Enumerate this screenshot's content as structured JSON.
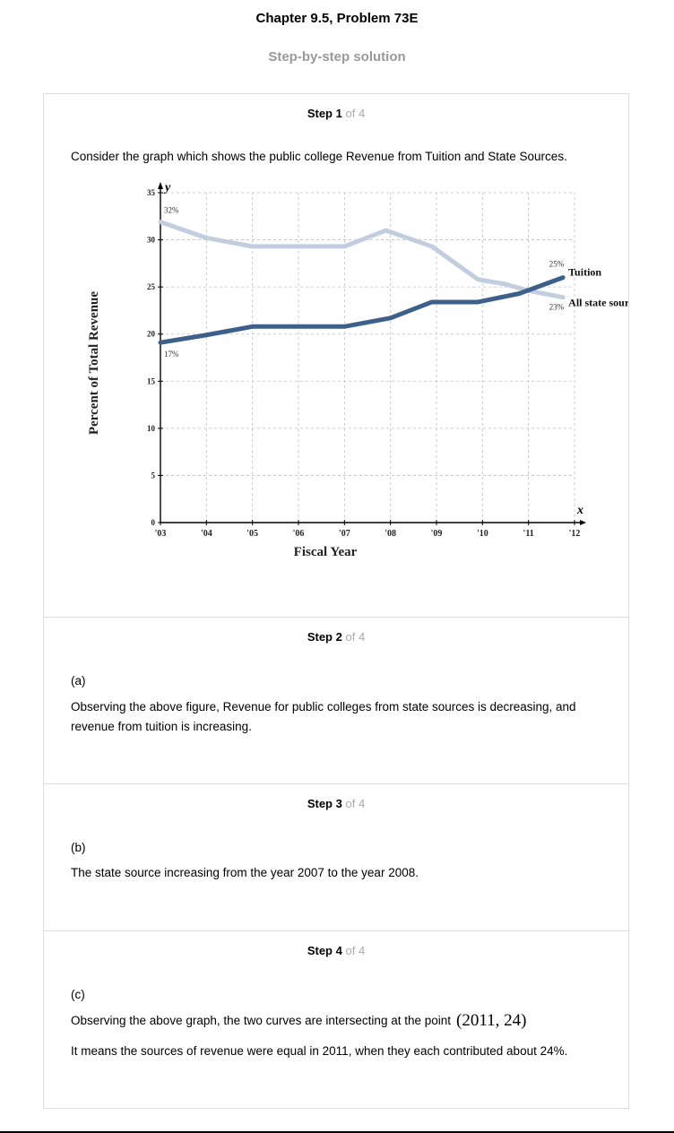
{
  "header": {
    "title": "Chapter 9.5, Problem 73E",
    "subtitle": "Step-by-step solution"
  },
  "steps": [
    {
      "label": "Step",
      "num": "1",
      "of": "of 4",
      "text": "Consider the graph which shows the public college Revenue from Tuition and State Sources."
    },
    {
      "label": "Step",
      "num": "2",
      "of": "of 4",
      "part": "(a)",
      "text": "Observing the above figure, Revenue for public colleges from state sources is decreasing, and revenue from tuition is increasing."
    },
    {
      "label": "Step",
      "num": "3",
      "of": "of 4",
      "part": "(b)",
      "text": "The state source increasing from the year 2007 to the year 2008."
    },
    {
      "label": "Step",
      "num": "4",
      "of": "of 4",
      "part": "(c)",
      "text": "Observing the above graph, the two curves are intersecting at the point",
      "point": "(2011, 24)",
      "text2": "It means the sources of revenue were equal in 2011, when they each contributed about 24%."
    }
  ],
  "chart_data": {
    "type": "line",
    "xlabel": "Fiscal Year",
    "ylabel": "Percent of Total Revenue",
    "x_axis_letter": "x",
    "y_axis_letter": "y",
    "x_ticks": [
      "'03",
      "'04",
      "'05",
      "'06",
      "'07",
      "'08",
      "'09",
      "'10",
      "'11",
      "'12"
    ],
    "y_ticks": [
      0,
      5,
      10,
      15,
      20,
      25,
      30,
      35
    ],
    "xlim": [
      2003,
      2012
    ],
    "ylim": [
      0,
      35
    ],
    "grid": true,
    "series": [
      {
        "name": "Tuition",
        "color": "#3d5f8c",
        "x": [
          2003,
          2004,
          2005,
          2006,
          2007,
          2008,
          2008.9,
          2009.9,
          2010.8,
          2011.75
        ],
        "y": [
          19.1,
          19.9,
          20.8,
          20.8,
          20.8,
          21.7,
          23.4,
          23.4,
          24.3,
          26.0
        ]
      },
      {
        "name": "All state sources",
        "color": "#c3cde0",
        "x": [
          2003,
          2004,
          2005,
          2006,
          2007,
          2007.9,
          2008.9,
          2009.9,
          2010.5,
          2011,
          2011.75
        ],
        "y": [
          31.9,
          30.2,
          29.3,
          29.3,
          29.3,
          31.0,
          29.3,
          25.8,
          25.3,
          24.6,
          23.9
        ]
      }
    ],
    "annotations": [
      "32%",
      "17%",
      "25%",
      "23%"
    ]
  }
}
